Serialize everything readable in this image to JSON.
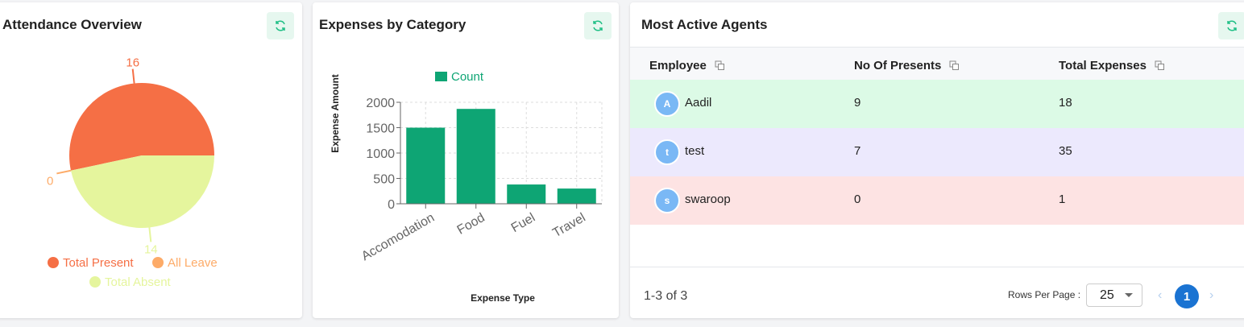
{
  "attendance": {
    "title": "Attendance Overview",
    "refresh_icon": "refresh-icon",
    "chart_data": {
      "type": "pie",
      "slices": [
        {
          "label": "Total Present",
          "value": 16,
          "color": "#f56f45"
        },
        {
          "label": "All Leave",
          "value": 0,
          "color": "#fdab68"
        },
        {
          "label": "Total Absent",
          "value": 14,
          "color": "#e5f59d"
        }
      ],
      "legend": "bottom"
    }
  },
  "expenses": {
    "title": "Expenses by Category",
    "chart_data": {
      "type": "bar",
      "categories": [
        "Accomodation",
        "Food",
        "Fuel",
        "Travel"
      ],
      "series": [
        {
          "name": "Count",
          "values": [
            1500,
            1870,
            380,
            300
          ],
          "color": "#0ea574"
        }
      ],
      "xlabel": "Expense Type",
      "ylabel": "Expense Amount",
      "ylim": [
        0,
        2000
      ],
      "yticks": [
        "0",
        "500",
        "1000",
        "1500",
        "2000"
      ],
      "grid": true,
      "legend": "top"
    }
  },
  "agents": {
    "title": "Most Active Agents",
    "columns": [
      "Employee",
      "No Of Presents",
      "Total Expenses"
    ],
    "rows": [
      {
        "initial": "A",
        "name": "Aadil",
        "presents": "9",
        "expenses": "18",
        "bg": "#dcfae6"
      },
      {
        "initial": "t",
        "name": "test",
        "presents": "7",
        "expenses": "35",
        "bg": "#ece9fd"
      },
      {
        "initial": "s",
        "name": "swaroop",
        "presents": "0",
        "expenses": "1",
        "bg": "#fde3e3"
      }
    ],
    "range": "1-3 of 3",
    "rows_per_page_label": "Rows Per Page :",
    "rows_per_page": "25",
    "page": "1"
  }
}
